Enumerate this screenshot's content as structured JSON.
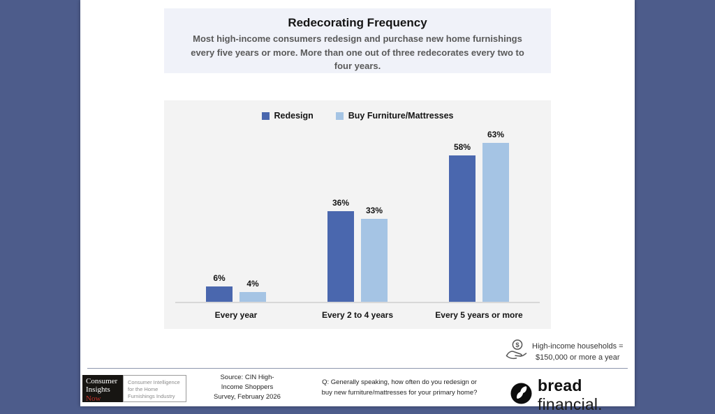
{
  "header": {
    "title": "Redecorating Frequency",
    "subtitle": "Most high-income consumers redesign and purchase new home furnishings every five years or more. More than one out of three redecorates every two to four years."
  },
  "chart_data": {
    "type": "bar",
    "title": "Redecorating Frequency",
    "categories": [
      "Every year",
      "Every 2 to 4 years",
      "Every 5 years or more"
    ],
    "series": [
      {
        "name": "Redesign",
        "color": "#4a67ae",
        "values": [
          6,
          36,
          58
        ]
      },
      {
        "name": "Buy Furniture/Mattresses",
        "color": "#a5c4e4",
        "values": [
          4,
          33,
          63
        ]
      }
    ],
    "value_suffix": "%",
    "ylim": [
      0,
      70
    ],
    "grid": false,
    "legend_position": "top",
    "plot_background": "#f3f3f3"
  },
  "note": {
    "icon": "dollar-hand-icon",
    "line1": "High-income households =",
    "line2": "$150,000 or more a year"
  },
  "footer": {
    "cin_logo": {
      "line1": "Consumer",
      "line2": "Insights",
      "line3": "Now",
      "tagline1": "Consumer Intelligence",
      "tagline2": "for the Home",
      "tagline3": "Furnishings Industry"
    },
    "source": [
      "Source: CIN High-",
      "Income Shoppers",
      "Survey, February 2026"
    ],
    "question": [
      "Q: Generally speaking, how often do you redesign or",
      "buy new furniture/mattresses for your primary home?"
    ],
    "brand": {
      "bold": "bread",
      "light": "financial."
    }
  },
  "colors": {
    "page_border": "#4d5c8b",
    "slide_background": "#ffffff",
    "title_block_background": "#f0f2f9",
    "chart_background": "#f3f3f3",
    "series_dark_blue": "#4a67ae",
    "series_light_blue": "#a5c4e4",
    "subtitle_gray": "#595959",
    "cin_now_red": "#c03028"
  }
}
